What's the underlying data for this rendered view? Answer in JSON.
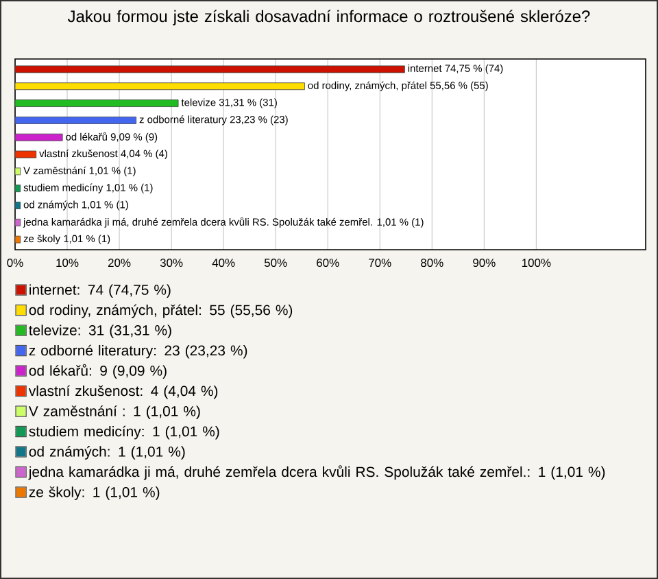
{
  "chart_data": {
    "type": "bar",
    "orientation": "horizontal",
    "title": "Jakou formou jste získali dosavadní informace o roztroušené skleróze?",
    "categories": [
      null,
      null,
      null,
      null,
      null,
      null,
      null,
      null,
      null,
      null,
      null
    ],
    "values": [
      74.75,
      55.56,
      31.31,
      23.23,
      9.09,
      4.04,
      1.01,
      1.01,
      1.01,
      1.01,
      1.01
    ],
    "value_labels": [
      "internet 74,75 % (74)",
      "od rodiny, známých, přátel 55,56 % (55)",
      "televize 31,31 % (31)",
      "z odborné literatury 23,23 % (23)",
      "od lékařů 9,09 % (9)",
      "vlastní zkušenost 4,04 % (4)",
      "V zaměstnání  1,01 % (1)",
      "studiem medicíny 1,01 % (1)",
      "od známých 1,01 % (1)",
      "jedna kamarádka ji má, druhé zemřela dcera kvůli RS. Spolužák také zemřel. 1,01 % (1)",
      "ze školy 1,01 % (1)"
    ],
    "colors": [
      "#cc1100",
      "#ffdd00",
      "#22bb22",
      "#4466ee",
      "#cc22cc",
      "#ee3300",
      "#ccff66",
      "#119955",
      "#117788",
      "#cc66cc",
      "#ee7700"
    ],
    "xlim": [
      0,
      121
    ],
    "xticks": [
      {
        "value": 0,
        "label": "0%"
      },
      {
        "value": 10,
        "label": "10%"
      },
      {
        "value": 20,
        "label": "20%"
      },
      {
        "value": 30,
        "label": "30%"
      },
      {
        "value": 40,
        "label": "40%"
      },
      {
        "value": 50,
        "label": "50%"
      },
      {
        "value": 60,
        "label": "60%"
      },
      {
        "value": 70,
        "label": "70%"
      },
      {
        "value": 80,
        "label": "80%"
      },
      {
        "value": 90,
        "label": "90%"
      },
      {
        "value": 100,
        "label": "100%"
      }
    ],
    "grid": "x",
    "annotations": [
      "internet: 74 (74,75 %)",
      "od rodiny, známých, přátel: 55 (55,56 %)",
      "televize: 31 (31,31 %)",
      "z odborné literatury: 23 (23,23 %)",
      "od lékařů: 9 (9,09 %)",
      "vlastní zkušenost: 4 (4,04 %)",
      "V zaměstnání : 1 (1,01 %)",
      "studiem medicíny: 1 (1,01 %)",
      "od známých: 1 (1,01 %)",
      "jedna kamarádka ji má, druhé zemřela dcera kvůli RS. Spolužák také zemřel.: 1 (1,01 %)",
      "ze školy: 1 (1,01 %)"
    ]
  }
}
